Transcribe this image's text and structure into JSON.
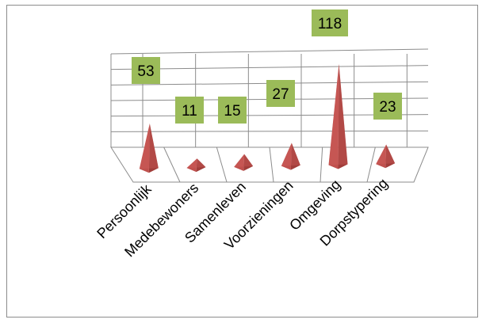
{
  "chart_data": {
    "type": "bar",
    "subtype": "3d-pyramid",
    "title": "",
    "xlabel": "",
    "ylabel": "",
    "categories": [
      "Persoonlijk",
      "Medebewoners",
      "Samenleven",
      "Voorzieningen",
      "Omgeving",
      "Dorpstypering"
    ],
    "values": [
      53,
      11,
      15,
      27,
      118,
      23
    ],
    "ylim": [
      0,
      125
    ],
    "grid": true,
    "legend": "none",
    "bar_color": "#c0504d",
    "label_box_color": "#9bbb59"
  }
}
